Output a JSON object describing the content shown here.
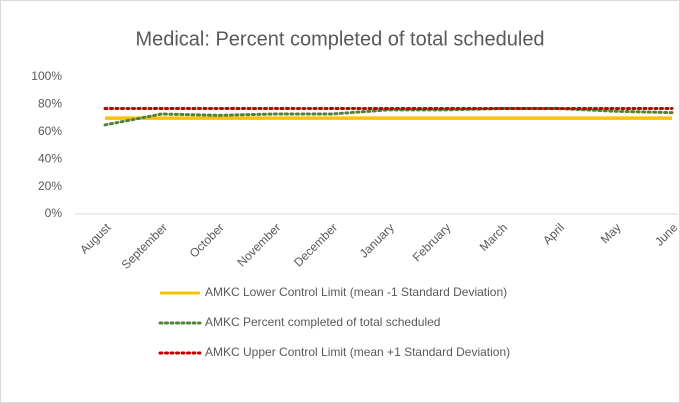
{
  "chart_data": {
    "type": "line",
    "title": "Medical: Percent completed of total scheduled",
    "categories": [
      "August",
      "September",
      "October",
      "November",
      "December",
      "January",
      "February",
      "March",
      "April",
      "May",
      "June"
    ],
    "series": [
      {
        "name": "AMKC Lower Control Limit (mean -1 Standard Deviation)",
        "color": "#ffc000",
        "style": "solid",
        "values": [
          70,
          70,
          70,
          70,
          70,
          70,
          70,
          70,
          70,
          70,
          70
        ]
      },
      {
        "name": "AMKC Percent completed of total scheduled",
        "color": "#548235",
        "style": "dotted",
        "values": [
          65,
          73,
          72,
          73,
          73,
          76,
          76,
          77,
          77,
          75,
          74
        ]
      },
      {
        "name": "AMKC Upper Control Limit (mean +1 Standard Deviation)",
        "color": "#c00000",
        "style": "dotted",
        "values": [
          77,
          77,
          77,
          77,
          77,
          77,
          77,
          77,
          77,
          77,
          77
        ]
      }
    ],
    "ylim": [
      0,
      100
    ],
    "yticks": [
      {
        "value": 0,
        "label": "0%"
      },
      {
        "value": 20,
        "label": "20%"
      },
      {
        "value": 40,
        "label": "40%"
      },
      {
        "value": 60,
        "label": "60%"
      },
      {
        "value": 80,
        "label": "80%"
      },
      {
        "value": 100,
        "label": "100%"
      }
    ],
    "grid": false,
    "legend": "bottom"
  }
}
